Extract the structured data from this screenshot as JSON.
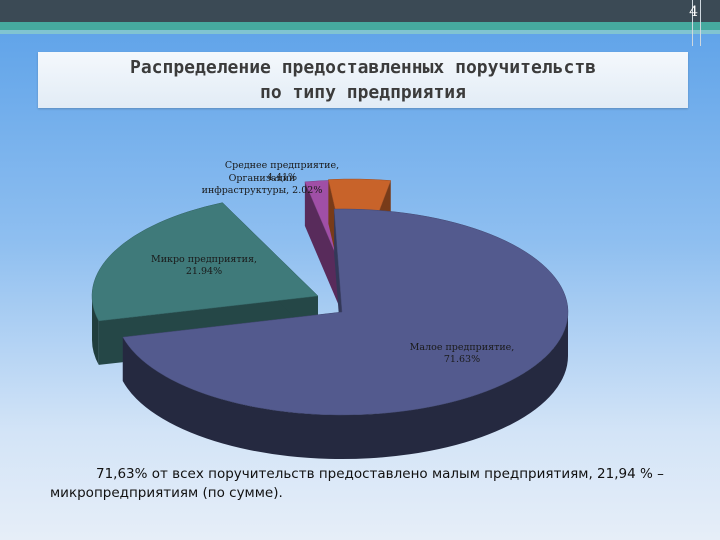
{
  "slide": {
    "number": "4"
  },
  "title": {
    "line1": "Распределение предоставленных поручительств",
    "line2": "по типу предприятия"
  },
  "chart_data": {
    "type": "pie",
    "title": "",
    "slices": [
      {
        "name": "Малое предприятие",
        "label": [
          "Малое предприятие,",
          "71.63%"
        ],
        "value": 71.63,
        "color": "#535a8e"
      },
      {
        "name": "Микро предприятия",
        "label": [
          "Микро предприятия,",
          "21.94%"
        ],
        "value": 21.94,
        "color": "#3f7a7a"
      },
      {
        "name": "Организации инфраструктуры",
        "label": [
          "Организации",
          "инфраструктуры, 2.02%"
        ],
        "value": 2.02,
        "color": "#a04fa6"
      },
      {
        "name": "Среднее предприятие",
        "label": [
          "Среднее предприятие,",
          "4.41%"
        ],
        "value": 4.41,
        "color": "#c8632a"
      }
    ]
  },
  "caption": {
    "text": "71,63% от всех поручительств предоставлено малым предприятиям, 21,94 % – микропредприятиям (по сумме)."
  }
}
